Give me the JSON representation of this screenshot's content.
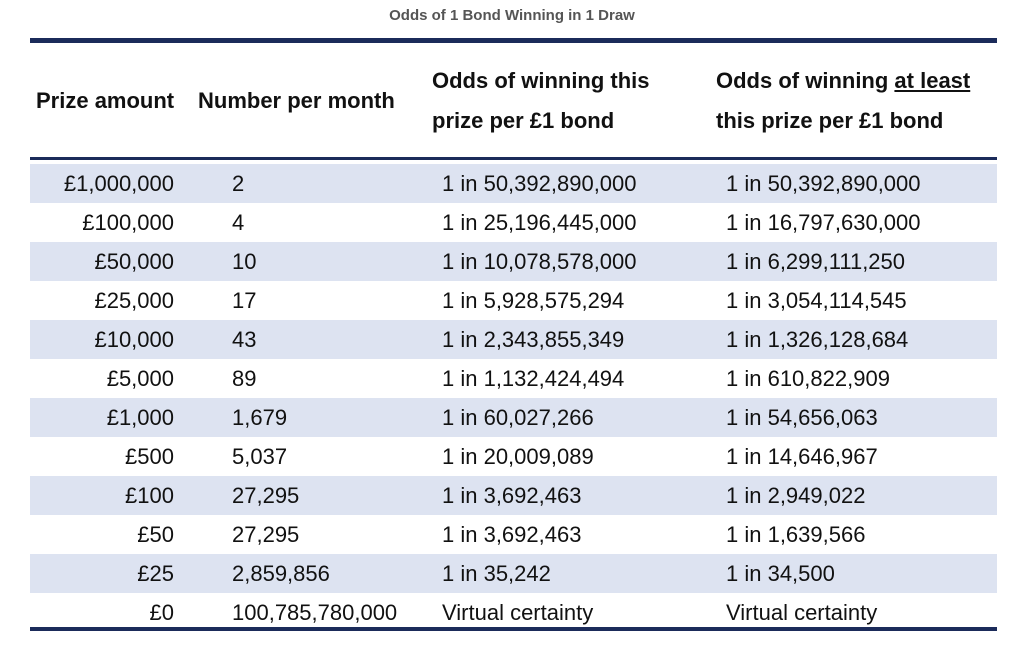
{
  "title": "Odds of 1 Bond Winning in 1 Draw",
  "colors": {
    "rule": "#1b2b5a",
    "shaded_row": "#dde3f1",
    "title_text": "#555555"
  },
  "header": {
    "prize_amount": "Prize amount",
    "number_per_month": "Number per month",
    "odds_this_line1": "Odds of winning this",
    "odds_this_line2": "prize per £1 bond",
    "odds_atleast_prefix": "Odds of winning ",
    "odds_atleast_underlined": "at least",
    "odds_atleast_line2": "this prize per £1 bond"
  },
  "rows": [
    {
      "prize": "£1,000,000",
      "number": "2",
      "odds": "1 in 50,392,890,000",
      "odds_at_least": "1 in 50,392,890,000"
    },
    {
      "prize": "£100,000",
      "number": "4",
      "odds": "1 in 25,196,445,000",
      "odds_at_least": "1 in 16,797,630,000"
    },
    {
      "prize": "£50,000",
      "number": "10",
      "odds": "1 in 10,078,578,000",
      "odds_at_least": "1 in 6,299,111,250"
    },
    {
      "prize": "£25,000",
      "number": "17",
      "odds": "1 in 5,928,575,294",
      "odds_at_least": "1 in 3,054,114,545"
    },
    {
      "prize": "£10,000",
      "number": "43",
      "odds": "1 in 2,343,855,349",
      "odds_at_least": "1 in 1,326,128,684"
    },
    {
      "prize": "£5,000",
      "number": "89",
      "odds": "1 in 1,132,424,494",
      "odds_at_least": "1 in 610,822,909"
    },
    {
      "prize": "£1,000",
      "number": "1,679",
      "odds": "1 in 60,027,266",
      "odds_at_least": "1 in 54,656,063"
    },
    {
      "prize": "£500",
      "number": "5,037",
      "odds": "1 in 20,009,089",
      "odds_at_least": "1 in 14,646,967"
    },
    {
      "prize": "£100",
      "number": "27,295",
      "odds": "1 in 3,692,463",
      "odds_at_least": "1 in 2,949,022"
    },
    {
      "prize": "£50",
      "number": "27,295",
      "odds": "1 in 3,692,463",
      "odds_at_least": "1 in 1,639,566"
    },
    {
      "prize": "£25",
      "number": "2,859,856",
      "odds": "1 in 35,242",
      "odds_at_least": "1 in 34,500"
    },
    {
      "prize": "£0",
      "number": "100,785,780,000",
      "odds": "Virtual certainty",
      "odds_at_least": "Virtual certainty"
    }
  ]
}
